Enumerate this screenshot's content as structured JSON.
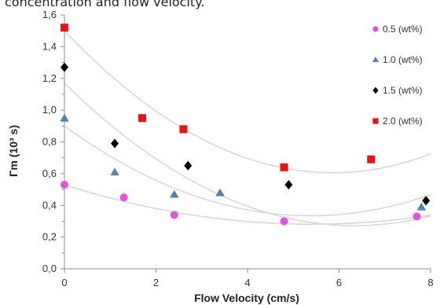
{
  "caption": "concentration and flow velocity.",
  "chart_data": {
    "type": "scatter",
    "title": "",
    "xlabel": "Flow Velocity (cm/s)",
    "ylabel": "Γm (10³ s)",
    "xlim": [
      0,
      8
    ],
    "ylim": [
      0,
      1.6
    ],
    "x_ticks": [
      "0",
      "2",
      "4",
      "6",
      "8"
    ],
    "y_ticks": [
      "0,0",
      "0,2",
      "0,4",
      "0,6",
      "0,8",
      "1,0",
      "1,2",
      "1,4",
      "1,6"
    ],
    "grid": false,
    "legend_position": "right",
    "trendlines": "quadratic fit per series, light gray",
    "series": [
      {
        "name": "0.5 (wt%)",
        "marker": "circle",
        "color": "#e84ee0",
        "x": [
          0.0,
          1.3,
          2.4,
          4.8,
          7.7
        ],
        "y": [
          0.53,
          0.45,
          0.34,
          0.3,
          0.33
        ],
        "fit": [
          0.53,
          -0.092,
          0.0085
        ]
      },
      {
        "name": "1.0 (wt%)",
        "marker": "triangle",
        "color": "#4f81bd",
        "x": [
          0.0,
          1.1,
          2.4,
          3.4,
          7.8
        ],
        "y": [
          0.95,
          0.61,
          0.47,
          0.48,
          0.39
        ],
        "fit": [
          0.9,
          -0.21,
          0.0195
        ]
      },
      {
        "name": "1.5 (wt%)",
        "marker": "diamond",
        "color": "#000000",
        "x": [
          0.0,
          1.1,
          2.7,
          4.9,
          7.9
        ],
        "y": [
          1.27,
          0.79,
          0.65,
          0.53,
          0.43
        ],
        "fit": [
          1.17,
          -0.283,
          0.0223
        ]
      },
      {
        "name": "2.0 (wt%)",
        "marker": "square",
        "color": "#ee1111",
        "x": [
          0.0,
          1.7,
          2.6,
          4.8,
          6.7
        ],
        "y": [
          1.52,
          0.95,
          0.88,
          0.64,
          0.69
        ],
        "fit": [
          1.5,
          -0.305,
          0.026
        ]
      }
    ]
  }
}
